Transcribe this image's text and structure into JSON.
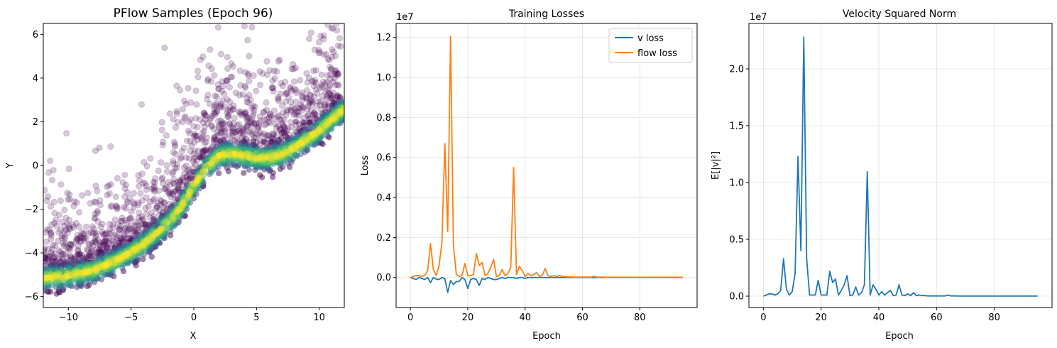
{
  "figure": {
    "background": "#ffffff"
  },
  "chart_data": [
    {
      "type": "scatter",
      "title": "PFlow Samples (Epoch 96)",
      "xlabel": "X",
      "ylabel": "Y",
      "xlim": [
        -12,
        12
      ],
      "ylim": [
        -6.5,
        6.5
      ],
      "xticks": [
        -10,
        -5,
        0,
        5,
        10
      ],
      "xtick_labels": [
        "−10",
        "−5",
        "0",
        "5",
        "10"
      ],
      "yticks": [
        -6,
        -4,
        -2,
        0,
        2,
        4,
        6
      ],
      "ytick_labels": [
        "−6",
        "−4",
        "−2",
        "0",
        "2",
        "4",
        "6"
      ],
      "grid": false,
      "colormap": "viridis",
      "marker_alpha": 0.22,
      "dense_band": {
        "x_range": [
          -12,
          12
        ],
        "center_curve": {
          "x": [
            -12,
            -10,
            -8,
            -6,
            -4,
            -2,
            -1,
            0,
            1,
            2,
            3,
            4,
            5,
            6,
            7,
            8,
            9,
            10,
            11,
            12
          ],
          "y": [
            -5.15,
            -5.05,
            -4.8,
            -4.3,
            -3.6,
            -2.6,
            -1.9,
            -0.9,
            -0.1,
            0.45,
            0.55,
            0.45,
            0.35,
            0.35,
            0.5,
            0.8,
            1.2,
            1.6,
            2.1,
            2.6
          ]
        },
        "spread": 0.3,
        "points_per_unit": 70
      },
      "outliers": {
        "description": "scattered dark purple points above the band",
        "count": 1400,
        "x_range": [
          -12,
          12
        ]
      }
    },
    {
      "type": "line",
      "title": "Training Losses",
      "xlabel": "Epoch",
      "ylabel": "Loss",
      "y_offset_text": "1e7",
      "xlim": [
        -5,
        100
      ],
      "ylim": [
        -0.15,
        1.27
      ],
      "xticks": [
        0,
        20,
        40,
        60,
        80
      ],
      "yticks": [
        0.0,
        0.2,
        0.4,
        0.6,
        0.8,
        1.0,
        1.2
      ],
      "ytick_labels": [
        "0.0",
        "0.2",
        "0.4",
        "0.6",
        "0.8",
        "1.0",
        "1.2"
      ],
      "grid": true,
      "legend_position": "top-right",
      "series": [
        {
          "name": "v loss",
          "color": "#1f77b4",
          "x": [
            0,
            1,
            2,
            3,
            4,
            5,
            6,
            7,
            8,
            9,
            10,
            11,
            12,
            13,
            14,
            15,
            16,
            17,
            18,
            19,
            20,
            21,
            22,
            23,
            24,
            25,
            26,
            27,
            28,
            29,
            30,
            31,
            32,
            33,
            34,
            35,
            36,
            37,
            38,
            39,
            40,
            41,
            42,
            43,
            44,
            45,
            46,
            47,
            48,
            49,
            50,
            51,
            52,
            53,
            54,
            55,
            56,
            57,
            58,
            59,
            60,
            61,
            62,
            63,
            64,
            65,
            66,
            67,
            68,
            69,
            70,
            71,
            72,
            73,
            74,
            75,
            76,
            77,
            78,
            79,
            80,
            81,
            82,
            83,
            84,
            85,
            86,
            87,
            88,
            89,
            90,
            91,
            92,
            93,
            94,
            95
          ],
          "y": [
            0,
            -0.005,
            -0.01,
            0,
            -0.005,
            -0.01,
            0,
            -0.025,
            0,
            -0.008,
            -0.01,
            0,
            -0.005,
            -0.075,
            -0.015,
            -0.035,
            -0.02,
            -0.02,
            0,
            -0.01,
            -0.055,
            -0.01,
            -0.005,
            -0.01,
            -0.04,
            -0.005,
            -0.01,
            0,
            -0.005,
            -0.01,
            -0.01,
            -0.005,
            0,
            -0.005,
            0,
            0,
            0,
            -0.005,
            0,
            0,
            -0.005,
            0,
            0,
            0,
            0,
            0,
            0,
            0,
            0,
            0,
            0,
            0,
            0,
            0,
            0,
            0,
            0,
            0,
            0,
            0,
            0,
            0,
            0,
            0,
            0,
            0,
            0,
            0,
            0,
            0,
            0,
            0,
            0,
            0,
            0,
            0,
            0,
            0,
            0,
            0,
            0,
            0,
            0,
            0,
            0,
            0,
            0,
            0,
            0,
            0,
            0,
            0,
            0,
            0,
            0,
            0
          ]
        },
        {
          "name": "flow loss",
          "color": "#ff7f0e",
          "x": [
            0,
            1,
            2,
            3,
            4,
            5,
            6,
            7,
            8,
            9,
            10,
            11,
            12,
            13,
            14,
            15,
            16,
            17,
            18,
            19,
            20,
            21,
            22,
            23,
            24,
            25,
            26,
            27,
            28,
            29,
            30,
            31,
            32,
            33,
            34,
            35,
            36,
            37,
            38,
            39,
            40,
            41,
            42,
            43,
            44,
            45,
            46,
            47,
            48,
            49,
            50,
            51,
            52,
            53,
            54,
            55,
            56,
            57,
            58,
            59,
            60,
            61,
            62,
            63,
            64,
            65,
            66,
            67,
            68,
            69,
            70,
            71,
            72,
            73,
            74,
            75,
            76,
            77,
            78,
            79,
            80,
            81,
            82,
            83,
            84,
            85,
            86,
            87,
            88,
            89,
            90,
            91,
            92,
            93,
            94,
            95
          ],
          "y": [
            0,
            0.005,
            0.01,
            0.01,
            0.005,
            0.01,
            0.035,
            0.17,
            0.04,
            0.01,
            0.06,
            0.18,
            0.67,
            0.23,
            1.205,
            0.16,
            0.015,
            0.005,
            0.01,
            0.07,
            0.01,
            0.01,
            0.015,
            0.12,
            0.06,
            0.075,
            0.01,
            0.02,
            0.05,
            0.09,
            0.005,
            0.01,
            0.04,
            0.01,
            0.02,
            0.05,
            0.55,
            0.015,
            0.055,
            0.035,
            0.005,
            0.02,
            0.01,
            0.015,
            0.025,
            0.005,
            0.01,
            0.045,
            0.01,
            0.005,
            0.01,
            0.005,
            0.01,
            0.005,
            0.005,
            0.003,
            0.003,
            0.002,
            0.002,
            0.002,
            0.002,
            0.002,
            0.002,
            0.002,
            0.006,
            0.002,
            0.002,
            0.002,
            0.001,
            0.001,
            0.001,
            0.001,
            0.001,
            0.001,
            0.001,
            0.001,
            0.001,
            0.001,
            0.001,
            0.001,
            0.001,
            0.001,
            0.001,
            0.001,
            0.001,
            0.001,
            0.001,
            0.001,
            0.001,
            0.001,
            0.001,
            0.001,
            0.001,
            0.001,
            0.001,
            0.001
          ]
        }
      ]
    },
    {
      "type": "line",
      "title": "Velocity Squared Norm",
      "xlabel": "Epoch",
      "ylabel": "E[|v|²]",
      "y_offset_text": "1e7",
      "xlim": [
        -5,
        100
      ],
      "ylim": [
        -0.1,
        2.4
      ],
      "xticks": [
        0,
        20,
        40,
        60,
        80
      ],
      "yticks": [
        0.0,
        0.5,
        1.0,
        1.5,
        2.0
      ],
      "ytick_labels": [
        "0.0",
        "0.5",
        "1.0",
        "1.5",
        "2.0"
      ],
      "grid": true,
      "series": [
        {
          "color": "#1f77b4",
          "x": [
            0,
            1,
            2,
            3,
            4,
            5,
            6,
            7,
            8,
            9,
            10,
            11,
            12,
            13,
            14,
            15,
            16,
            17,
            18,
            19,
            20,
            21,
            22,
            23,
            24,
            25,
            26,
            27,
            28,
            29,
            30,
            31,
            32,
            33,
            34,
            35,
            36,
            37,
            38,
            39,
            40,
            41,
            42,
            43,
            44,
            45,
            46,
            47,
            48,
            49,
            50,
            51,
            52,
            53,
            54,
            55,
            56,
            57,
            58,
            59,
            60,
            61,
            62,
            63,
            64,
            65,
            66,
            67,
            68,
            69,
            70,
            71,
            72,
            73,
            74,
            75,
            76,
            77,
            78,
            79,
            80,
            81,
            82,
            83,
            84,
            85,
            86,
            87,
            88,
            89,
            90,
            91,
            92,
            93,
            94,
            95
          ],
          "y": [
            0,
            0.01,
            0.02,
            0.02,
            0.01,
            0.02,
            0.05,
            0.33,
            0.06,
            0.01,
            0.04,
            0.2,
            1.23,
            0.4,
            2.28,
            0.33,
            0.01,
            0.01,
            0.01,
            0.14,
            0.01,
            0.01,
            0.01,
            0.22,
            0.12,
            0.15,
            0.01,
            0.05,
            0.1,
            0.18,
            0.005,
            0.01,
            0.08,
            0.01,
            0.03,
            0.1,
            1.095,
            0.01,
            0.1,
            0.06,
            0.01,
            0.04,
            0.01,
            0.03,
            0.05,
            0.005,
            0.01,
            0.1,
            0.01,
            0.005,
            0.02,
            0.005,
            0.03,
            0.005,
            0.01,
            0.005,
            0.005,
            0.002,
            0.002,
            0.002,
            0.002,
            0.002,
            0.002,
            0.002,
            0.01,
            0.002,
            0.002,
            0.002,
            0.001,
            0.001,
            0.001,
            0.001,
            0.001,
            0.001,
            0.001,
            0.001,
            0.001,
            0.001,
            0.001,
            0.001,
            0.001,
            0.001,
            0.001,
            0.001,
            0.001,
            0.001,
            0.001,
            0.001,
            0.001,
            0.001,
            0.001,
            0.001,
            0.001,
            0.001,
            0.001,
            0.001
          ]
        }
      ]
    }
  ]
}
